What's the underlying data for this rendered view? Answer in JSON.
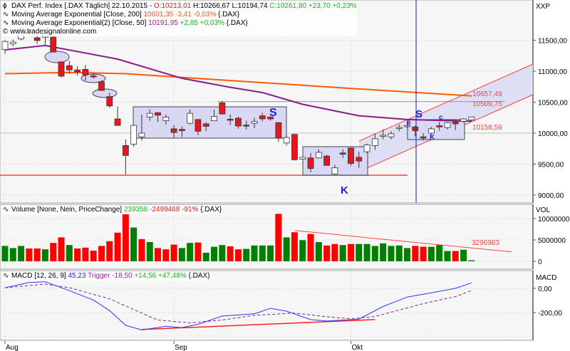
{
  "header": {
    "main": {
      "name": "DAX Perf. Index [.DAX  Täglich] 22.10.2015 - ",
      "open": "O:10213,01",
      "hl": "H:10266,67 L:10194,74",
      "close": "C:10261,80 +23,70 +0,23%"
    },
    "ema200": {
      "name": "Moving Average Exponential [Close, 200]",
      "value": "10601,35 -3,41 -0,03%",
      "symbol": "{.DAX}"
    },
    "ema50": {
      "name": "Moving Average Exponential(2) [Close, 50]",
      "value": "10191,95",
      "change": "+2,85 +0,03%",
      "symbol": "{.DAX}"
    },
    "copyright": "© www.tradesignalonline.com",
    "volume": {
      "name": "Volume [None, Nein, PriceChange]",
      "value": "239358",
      "change": "-2499468 -91%",
      "symbol": "{.DAX}"
    },
    "macd": {
      "name": "MACD [12, 26, 9]",
      "value": "45,23",
      "trigger": "Trigger -18,50",
      "change": "+14,56 +47,48%",
      "symbol": "{.DAX}"
    }
  },
  "colors": {
    "up": "#ffffff",
    "down": "#e8141e",
    "vol_up": "#008000",
    "vol_down": "#ff0000",
    "ema200": "#ff5a00",
    "ema50": "#8b1a8b",
    "macd": "#3333ff",
    "trigger": "#8b1a8b",
    "annotation": "#ff4040",
    "zone_fill": "#d8d8f4",
    "cursor": "#1a1aa0"
  },
  "chart_data": [
    {
      "type": "candlestick",
      "axis_title": "XXP",
      "yticks": [
        "11500,00",
        "11000,00",
        "10500,00",
        "10000,00",
        "9500,00",
        "9000,00"
      ],
      "ytick_values": [
        11500,
        11000,
        10500,
        10000,
        9500,
        9000
      ],
      "ylim": [
        8850,
        12150
      ],
      "xticks": [
        {
          "label": "Aug",
          "date": "2015-08-03"
        },
        {
          "label": "Sep",
          "date": "2015-09-01"
        },
        {
          "label": "Okt",
          "date": "2015-10-01"
        }
      ],
      "dates": [
        "2015-08-03",
        "2015-08-04",
        "2015-08-05",
        "2015-08-06",
        "2015-08-07",
        "2015-08-10",
        "2015-08-11",
        "2015-08-12",
        "2015-08-13",
        "2015-08-14",
        "2015-08-17",
        "2015-08-18",
        "2015-08-19",
        "2015-08-20",
        "2015-08-21",
        "2015-08-24",
        "2015-08-25",
        "2015-08-26",
        "2015-08-27",
        "2015-08-28",
        "2015-08-31",
        "2015-09-01",
        "2015-09-02",
        "2015-09-03",
        "2015-09-04",
        "2015-09-07",
        "2015-09-08",
        "2015-09-09",
        "2015-09-10",
        "2015-09-11",
        "2015-09-14",
        "2015-09-15",
        "2015-09-16",
        "2015-09-17",
        "2015-09-18",
        "2015-09-21",
        "2015-09-22",
        "2015-09-23",
        "2015-09-24",
        "2015-09-25",
        "2015-09-28",
        "2015-09-29",
        "2015-09-30",
        "2015-10-01",
        "2015-10-02",
        "2015-10-05",
        "2015-10-06",
        "2015-10-07",
        "2015-10-08",
        "2015-10-09",
        "2015-10-12",
        "2015-10-13",
        "2015-10-14",
        "2015-10-15",
        "2015-10-16",
        "2015-10-19",
        "2015-10-20",
        "2015-10-21",
        "2015-10-22"
      ],
      "ohlc": [
        [
          11350,
          11500,
          11280,
          11480
        ],
        [
          11440,
          11510,
          11400,
          11470
        ],
        [
          11520,
          11700,
          11500,
          11680
        ],
        [
          11640,
          11680,
          11600,
          11620
        ],
        [
          11540,
          11600,
          11440,
          11495
        ],
        [
          11550,
          11650,
          11430,
          11610
        ],
        [
          11550,
          11560,
          11300,
          11310
        ],
        [
          11150,
          11160,
          10900,
          10920
        ],
        [
          11090,
          11170,
          10960,
          11020
        ],
        [
          11020,
          11080,
          10930,
          10990
        ],
        [
          11030,
          11100,
          10850,
          10940
        ],
        [
          10925,
          10960,
          10880,
          10920
        ],
        [
          10830,
          10850,
          10680,
          10690
        ],
        [
          10590,
          10650,
          10410,
          10440
        ],
        [
          10230,
          10430,
          10120,
          10125
        ],
        [
          9800,
          9900,
          9330,
          9640
        ],
        [
          9820,
          10130,
          9780,
          10125
        ],
        [
          9940,
          10300,
          9880,
          10000
        ],
        [
          10260,
          10380,
          10200,
          10320
        ],
        [
          10330,
          10340,
          10180,
          10290
        ],
        [
          10200,
          10300,
          10140,
          10260
        ],
        [
          10070,
          10130,
          9920,
          10010
        ],
        [
          10060,
          10110,
          9940,
          10040
        ],
        [
          10160,
          10380,
          10140,
          10320
        ],
        [
          10220,
          10230,
          9970,
          10030
        ],
        [
          10150,
          10180,
          10030,
          10110
        ],
        [
          10200,
          10380,
          10200,
          10270
        ],
        [
          10490,
          10520,
          10300,
          10310
        ],
        [
          10225,
          10300,
          10130,
          10220
        ],
        [
          10240,
          10270,
          10070,
          10115
        ],
        [
          10130,
          10200,
          10060,
          10115
        ],
        [
          10160,
          10250,
          10080,
          10190
        ],
        [
          10280,
          10330,
          10190,
          10230
        ],
        [
          10260,
          10270,
          10200,
          10230
        ],
        [
          10170,
          10180,
          9860,
          9920
        ],
        [
          9840,
          9960,
          9800,
          9930
        ],
        [
          9980,
          9990,
          9560,
          9570
        ],
        [
          9580,
          9620,
          9570,
          9610
        ],
        [
          9600,
          9680,
          9370,
          9430
        ],
        [
          9600,
          9740,
          9590,
          9690
        ],
        [
          9630,
          9650,
          9480,
          9480
        ],
        [
          9340,
          9490,
          9340,
          9440
        ],
        [
          9680,
          9740,
          9600,
          9660
        ],
        [
          9760,
          9770,
          9470,
          9510
        ],
        [
          9610,
          9700,
          9440,
          9550
        ],
        [
          9700,
          9830,
          9680,
          9810
        ],
        [
          9800,
          9990,
          9730,
          9910
        ],
        [
          9962,
          10060,
          9900,
          9967
        ],
        [
          9940,
          10030,
          9900,
          9990
        ],
        [
          10088,
          10140,
          10030,
          10092
        ],
        [
          10118,
          10190,
          10080,
          10122
        ],
        [
          10100,
          10120,
          9950,
          10040
        ],
        [
          9940,
          10000,
          9880,
          9920
        ],
        [
          10000,
          10100,
          9960,
          10070
        ],
        [
          10120,
          10180,
          10040,
          10100
        ],
        [
          10090,
          10180,
          10060,
          10170
        ],
        [
          10180,
          10200,
          10050,
          10150
        ],
        [
          10190,
          10240,
          10170,
          10230
        ],
        [
          10213.01,
          10266.67,
          10194.74,
          10261.8
        ]
      ],
      "ema200": [
        [
          "2015-08-03",
          10960
        ],
        [
          "2015-08-13",
          10980
        ],
        [
          "2015-08-24",
          10960
        ],
        [
          "2015-09-10",
          10850
        ],
        [
          "2015-09-30",
          10730
        ],
        [
          "2015-10-22",
          10601.35
        ]
      ],
      "ema50": [
        [
          "2015-08-03",
          11345
        ],
        [
          "2015-08-10",
          11415
        ],
        [
          "2015-08-21",
          11195
        ],
        [
          "2015-09-02",
          10885
        ],
        [
          "2015-09-10",
          10740
        ],
        [
          "2015-09-16",
          10655
        ],
        [
          "2015-09-23",
          10465
        ],
        [
          "2015-10-02",
          10280
        ],
        [
          "2015-10-12",
          10220
        ],
        [
          "2015-10-22",
          10191.95
        ]
      ],
      "support_level": 9320,
      "resistance_level": 10509.75,
      "value_labels": [
        "10657,49",
        "10509,75",
        "10158,59"
      ],
      "annotations": [
        "S",
        "K",
        "S",
        "s",
        "K",
        "c"
      ]
    },
    {
      "type": "bar",
      "axis_title": "VOL",
      "yticks": [
        "10000000",
        "5000000",
        "0"
      ],
      "ytick_values": [
        10000000,
        5000000,
        0
      ],
      "values_millions": [
        3.6,
        3.1,
        3.6,
        3.0,
        3.0,
        2.8,
        4.3,
        5.6,
        3.8,
        3.0,
        3.2,
        2.5,
        3.6,
        4.7,
        6.7,
        11.0,
        7.9,
        5.2,
        4.5,
        3.1,
        2.8,
        3.9,
        3.1,
        4.3,
        4.4,
        2.0,
        3.4,
        3.8,
        3.5,
        2.8,
        2.9,
        3.7,
        3.7,
        3.7,
        11.1,
        5.6,
        6.8,
        4.95,
        6.4,
        4.5,
        3.7,
        4.05,
        3.8,
        4.05,
        4.05,
        4.05,
        3.6,
        4.2,
        3.6,
        3.7,
        3.1,
        3.6,
        3.4,
        3.4,
        3.8,
        2.4,
        2.4,
        2.7,
        0.239358
      ],
      "bar_colors": [
        "g",
        "g",
        "g",
        "r",
        "r",
        "g",
        "r",
        "r",
        "g",
        "r",
        "r",
        "r",
        "r",
        "r",
        "r",
        "r",
        "g",
        "r",
        "g",
        "r",
        "r",
        "r",
        "g",
        "g",
        "r",
        "g",
        "g",
        "g",
        "r",
        "r",
        "g",
        "g",
        "g",
        "g",
        "r",
        "g",
        "r",
        "g",
        "r",
        "g",
        "r",
        "r",
        "g",
        "r",
        "g",
        "g",
        "g",
        "g",
        "g",
        "g",
        "g",
        "r",
        "r",
        "g",
        "g",
        "g",
        "r",
        "g",
        "g"
      ],
      "trendline_label": "3296983"
    },
    {
      "type": "line",
      "axis_title": "MACD",
      "yticks": [
        "0,00",
        "-200,00"
      ],
      "ytick_values": [
        0,
        -200
      ],
      "macd": [
        [
          "2015-08-03",
          5
        ],
        [
          "2015-08-06",
          49
        ],
        [
          "2015-08-10",
          54
        ],
        [
          "2015-08-13",
          -19
        ],
        [
          "2015-08-18",
          -97
        ],
        [
          "2015-08-20",
          -184
        ],
        [
          "2015-08-24",
          -305
        ],
        [
          "2015-08-26",
          -344
        ],
        [
          "2015-08-31",
          -313
        ],
        [
          "2015-09-02",
          -324
        ],
        [
          "2015-09-04",
          -297
        ],
        [
          "2015-09-09",
          -229
        ],
        [
          "2015-09-15",
          -210
        ],
        [
          "2015-09-17",
          -165
        ],
        [
          "2015-09-21",
          -188
        ],
        [
          "2015-09-24",
          -258
        ],
        [
          "2015-09-28",
          -270
        ],
        [
          "2015-10-02",
          -254
        ],
        [
          "2015-10-07",
          -150
        ],
        [
          "2015-10-12",
          -72
        ],
        [
          "2015-10-14",
          -49
        ],
        [
          "2015-10-20",
          0
        ],
        [
          "2015-10-22",
          45.23
        ]
      ],
      "trigger": [
        [
          "2015-08-03",
          5
        ],
        [
          "2015-08-10",
          35
        ],
        [
          "2015-08-13",
          6
        ],
        [
          "2015-08-20",
          -87
        ],
        [
          "2015-08-26",
          -204
        ],
        [
          "2015-08-28",
          -262
        ],
        [
          "2015-09-03",
          -285
        ],
        [
          "2015-09-09",
          -262
        ],
        [
          "2015-09-15",
          -223
        ],
        [
          "2015-09-22",
          -204
        ],
        [
          "2015-09-28",
          -235
        ],
        [
          "2015-10-01",
          -252
        ],
        [
          "2015-10-06",
          -233
        ],
        [
          "2015-10-14",
          -126
        ],
        [
          "2015-10-20",
          -68
        ],
        [
          "2015-10-22",
          -18.5
        ]
      ],
      "trendline": [
        [
          "2015-08-26",
          -340
        ],
        [
          "2015-10-06",
          -258
        ]
      ]
    }
  ]
}
